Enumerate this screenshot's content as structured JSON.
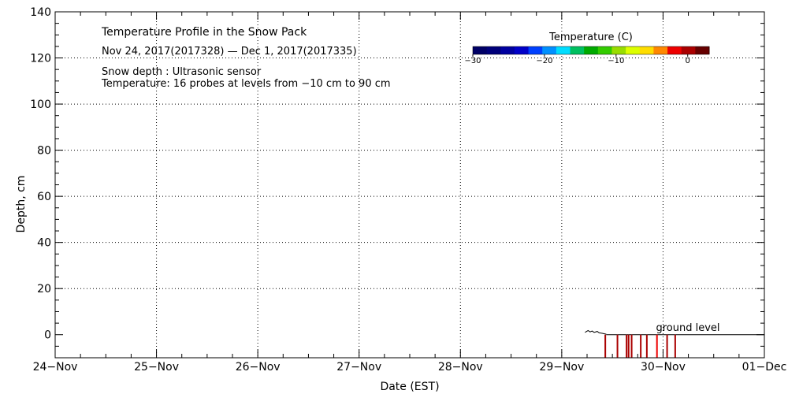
{
  "chart_data": {
    "type": "heatmap",
    "title": "Temperature Profile in the Snow Pack",
    "subtitle": "Nov 24, 2017(2017328) — Dec  1, 2017(2017335)",
    "notes": [
      "Snow depth : Ultrasonic sensor",
      "Temperature: 16 probes at levels from −10 cm to 90 cm"
    ],
    "xlabel": "Date (EST)",
    "ylabel": "Depth, cm",
    "x_range": [
      "2017-11-24",
      "2017-12-01"
    ],
    "x_tick_labels": [
      "24−Nov",
      "25−Nov",
      "26−Nov",
      "27−Nov",
      "28−Nov",
      "29−Nov",
      "30−Nov",
      "01−Dec"
    ],
    "ylim": [
      -10,
      140
    ],
    "y_ticks": [
      0,
      20,
      40,
      60,
      80,
      100,
      120,
      140
    ],
    "grid": true,
    "ground_level_label": "ground level",
    "colorbar": {
      "label": "Temperature (C)",
      "range": [
        -30,
        3
      ],
      "tick_values": [
        -30,
        -20,
        -10,
        0
      ],
      "tick_labels": [
        "−30",
        "−20",
        "−10",
        "0"
      ],
      "colors": [
        "#000066",
        "#00007a",
        "#0000a0",
        "#0000c8",
        "#0040ff",
        "#0090ff",
        "#00ddff",
        "#00c060",
        "#00aa00",
        "#33cc00",
        "#99dd00",
        "#ddff00",
        "#ffdd00",
        "#ff8800",
        "#ee0000",
        "#aa0000",
        "#660000"
      ]
    },
    "snow_depth_series": [
      {
        "x": 5.23,
        "y": 1.0
      },
      {
        "x": 5.26,
        "y": 1.8
      },
      {
        "x": 5.28,
        "y": 1.2
      },
      {
        "x": 5.3,
        "y": 1.6
      },
      {
        "x": 5.32,
        "y": 1.0
      },
      {
        "x": 5.35,
        "y": 1.4
      },
      {
        "x": 5.37,
        "y": 0.8
      },
      {
        "x": 5.4,
        "y": 0.6
      },
      {
        "x": 5.44,
        "y": 0.2
      }
    ],
    "temperature_probe_columns": [
      {
        "x": 5.43,
        "y_bottom": -10,
        "temp": 0
      },
      {
        "x": 5.55,
        "y_bottom": -10,
        "temp": 0
      },
      {
        "x": 5.64,
        "y_bottom": -10,
        "temp": 0
      },
      {
        "x": 5.66,
        "y_bottom": -10,
        "temp": 0
      },
      {
        "x": 5.69,
        "y_bottom": -10,
        "temp": 0
      },
      {
        "x": 5.78,
        "y_bottom": -10,
        "temp": 0
      },
      {
        "x": 5.84,
        "y_bottom": -10,
        "temp": 0
      },
      {
        "x": 5.94,
        "y_bottom": -10,
        "temp": -1
      },
      {
        "x": 6.04,
        "y_bottom": -10,
        "temp": 0
      },
      {
        "x": 6.12,
        "y_bottom": -10,
        "temp": 0
      }
    ]
  }
}
